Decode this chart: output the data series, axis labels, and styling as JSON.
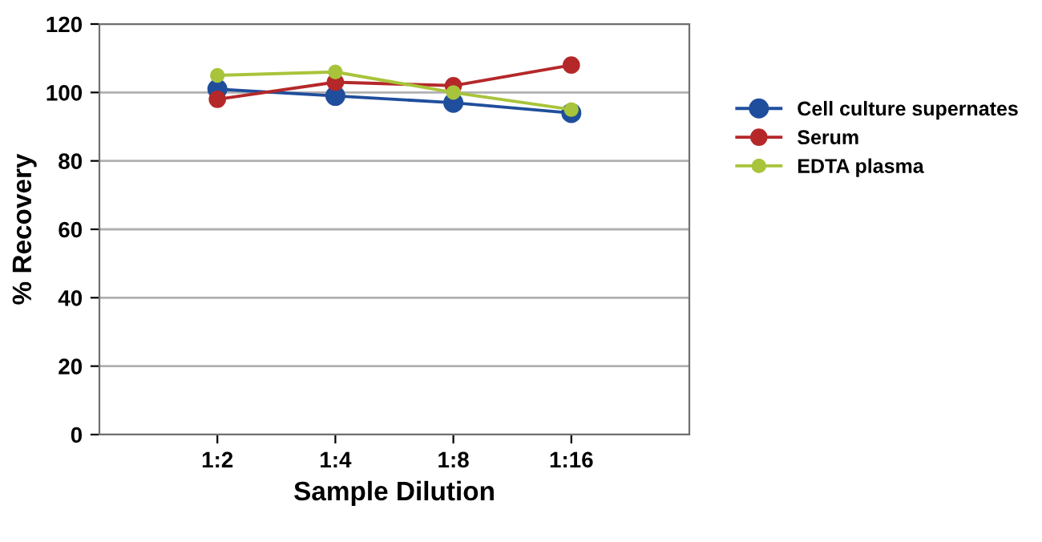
{
  "chart_data": {
    "type": "line",
    "xlabel": "Sample Dilution",
    "ylabel": "% Recovery",
    "categories": [
      "1:2",
      "1:4",
      "1:8",
      "1:16"
    ],
    "series": [
      {
        "name": "Cell culture supernates",
        "color": "#1f4e9c",
        "values": [
          101,
          99,
          97,
          94
        ]
      },
      {
        "name": "Serum",
        "color": "#b5282a",
        "values": [
          98,
          103,
          102,
          108
        ]
      },
      {
        "name": "EDTA plasma",
        "color": "#a8c43a",
        "values": [
          105,
          106,
          100,
          95
        ]
      }
    ],
    "ylim": [
      0,
      120
    ],
    "yticks": [
      0,
      20,
      40,
      60,
      80,
      100,
      120
    ],
    "grid": "y",
    "legend": "right",
    "marker": "circle",
    "line_style": "solid"
  }
}
